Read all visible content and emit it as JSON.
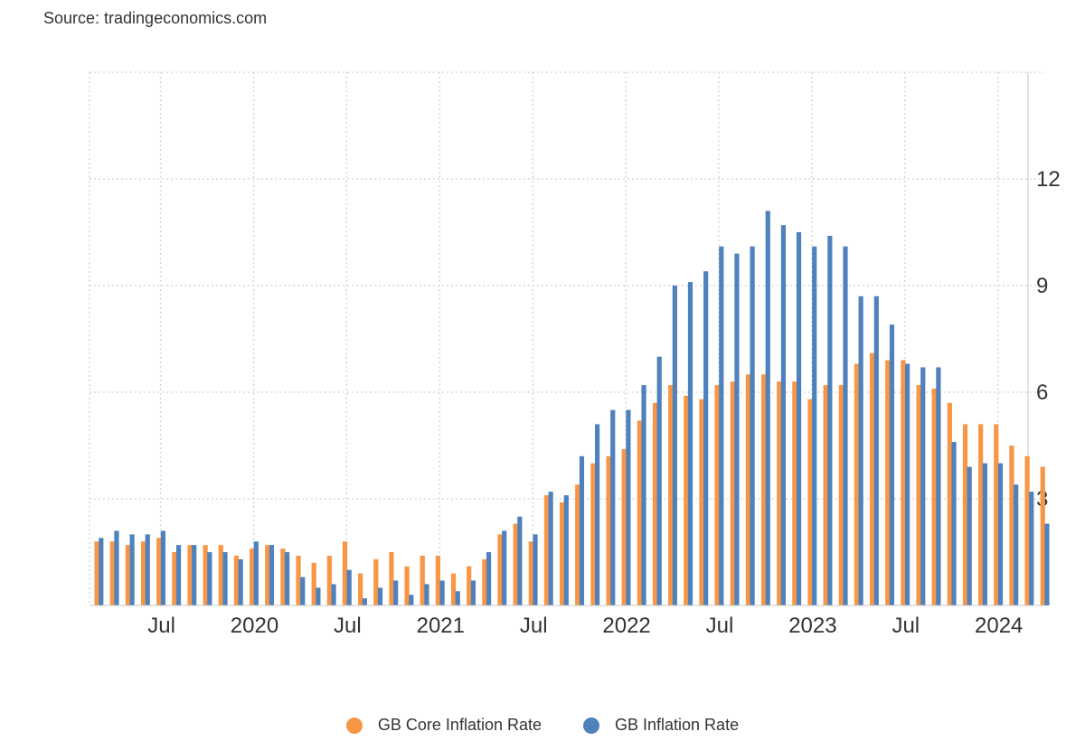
{
  "source": "Source: tradingeconomics.com",
  "colors": {
    "core": "#f79646",
    "inflation": "#4f81bd",
    "grid": "#d8d8d8",
    "axis": "#c8c8c8"
  },
  "chart_data": {
    "type": "bar",
    "title": "",
    "xlabel": "",
    "ylabel": "",
    "ylim": [
      0,
      15
    ],
    "y_ticks": [
      3,
      6,
      9,
      12
    ],
    "y_axis_side": "right",
    "grid": true,
    "legend_position": "bottom-center",
    "x_tick_labels": [
      "Jul",
      "2020",
      "Jul",
      "2021",
      "Jul",
      "2022",
      "Jul",
      "2023",
      "Jul",
      "2024"
    ],
    "categories": [
      "2019-03",
      "2019-04",
      "2019-05",
      "2019-06",
      "2019-07",
      "2019-08",
      "2019-09",
      "2019-10",
      "2019-11",
      "2019-12",
      "2020-01",
      "2020-02",
      "2020-03",
      "2020-04",
      "2020-05",
      "2020-06",
      "2020-07",
      "2020-08",
      "2020-09",
      "2020-10",
      "2020-11",
      "2020-12",
      "2021-01",
      "2021-02",
      "2021-03",
      "2021-04",
      "2021-05",
      "2021-06",
      "2021-07",
      "2021-08",
      "2021-09",
      "2021-10",
      "2021-11",
      "2021-12",
      "2022-01",
      "2022-02",
      "2022-03",
      "2022-04",
      "2022-05",
      "2022-06",
      "2022-07",
      "2022-08",
      "2022-09",
      "2022-10",
      "2022-11",
      "2022-12",
      "2023-01",
      "2023-02",
      "2023-03",
      "2023-04",
      "2023-05",
      "2023-06",
      "2023-07",
      "2023-08",
      "2023-09",
      "2023-10",
      "2023-11",
      "2023-12",
      "2024-01",
      "2024-02",
      "2024-03",
      "2024-04"
    ],
    "series": [
      {
        "name": "GB Core Inflation Rate",
        "values": [
          1.8,
          1.8,
          1.7,
          1.8,
          1.9,
          1.5,
          1.7,
          1.7,
          1.7,
          1.4,
          1.6,
          1.7,
          1.6,
          1.4,
          1.2,
          1.4,
          1.8,
          0.9,
          1.3,
          1.5,
          1.1,
          1.4,
          1.4,
          0.9,
          1.1,
          1.3,
          2.0,
          2.3,
          1.8,
          3.1,
          2.9,
          3.4,
          4.0,
          4.2,
          4.4,
          5.2,
          5.7,
          6.2,
          5.9,
          5.8,
          6.2,
          6.3,
          6.5,
          6.5,
          6.3,
          6.3,
          5.8,
          6.2,
          6.2,
          6.8,
          7.1,
          6.9,
          6.9,
          6.2,
          6.1,
          5.7,
          5.1,
          5.1,
          5.1,
          4.5,
          4.2,
          3.9
        ]
      },
      {
        "name": "GB Inflation Rate",
        "values": [
          1.9,
          2.1,
          2.0,
          2.0,
          2.1,
          1.7,
          1.7,
          1.5,
          1.5,
          1.3,
          1.8,
          1.7,
          1.5,
          0.8,
          0.5,
          0.6,
          1.0,
          0.2,
          0.5,
          0.7,
          0.3,
          0.6,
          0.7,
          0.4,
          0.7,
          1.5,
          2.1,
          2.5,
          2.0,
          3.2,
          3.1,
          4.2,
          5.1,
          5.5,
          5.5,
          6.2,
          7.0,
          9.0,
          9.1,
          9.4,
          10.1,
          9.9,
          10.1,
          11.1,
          10.7,
          10.5,
          10.1,
          10.4,
          10.1,
          8.7,
          8.7,
          7.9,
          6.8,
          6.7,
          6.7,
          4.6,
          3.9,
          4.0,
          4.0,
          3.4,
          3.2,
          2.3
        ]
      }
    ]
  }
}
